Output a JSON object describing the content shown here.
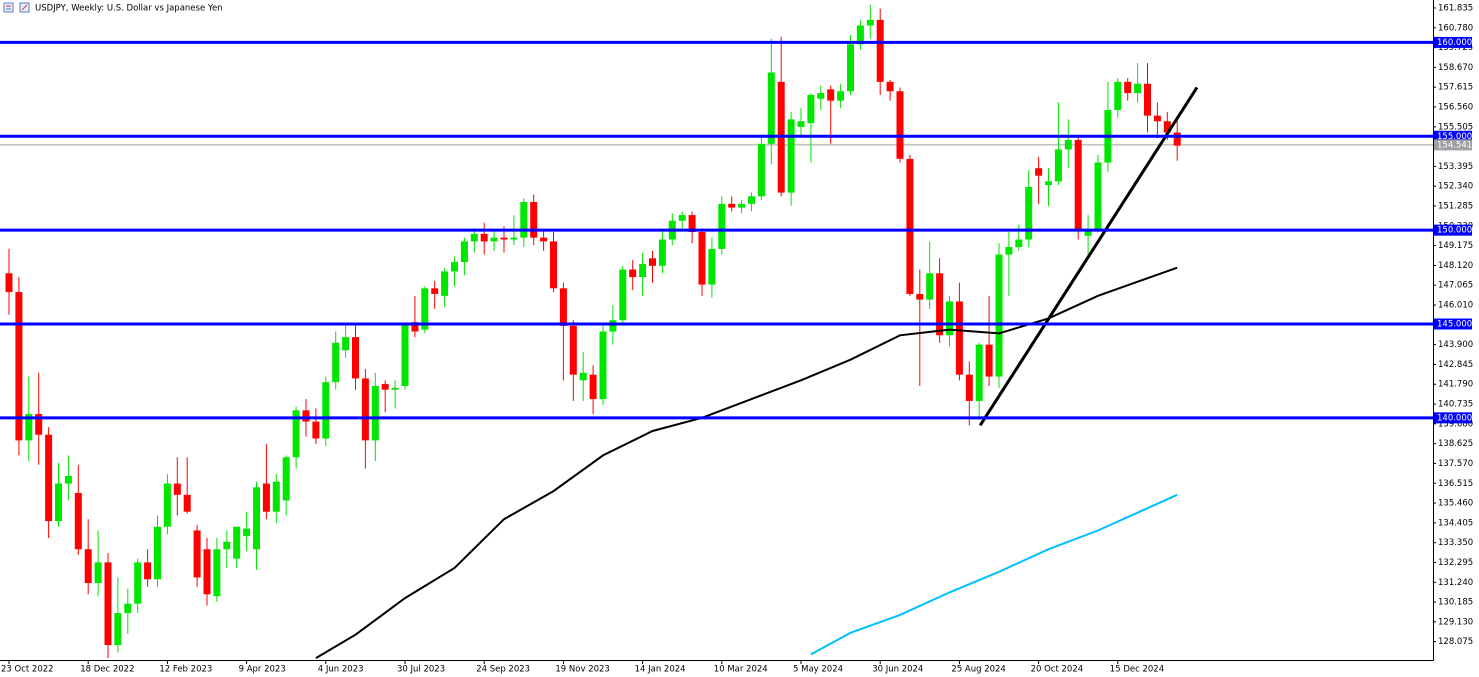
{
  "chart_data": {
    "type": "candlestick",
    "title": "USDJPY, Weekly:  U.S. Dollar vs Japanese Yen",
    "categories": [
      "23 Oct 2022",
      null,
      null,
      null,
      null,
      null,
      null,
      null,
      "18 Dec 2022",
      null,
      null,
      null,
      null,
      null,
      null,
      null,
      "12 Feb 2023",
      null,
      null,
      null,
      null,
      null,
      null,
      null,
      "9 Apr 2023",
      null,
      null,
      null,
      null,
      null,
      null,
      null,
      "4 Jun 2023",
      null,
      null,
      null,
      null,
      null,
      null,
      null,
      "30 Jul 2023",
      null,
      null,
      null,
      null,
      null,
      null,
      null,
      "24 Sep 2023",
      null,
      null,
      null,
      null,
      null,
      null,
      null,
      "19 Nov 2023",
      null,
      null,
      null,
      null,
      null,
      null,
      null,
      "14 Jan 2024",
      null,
      null,
      null,
      null,
      null,
      null,
      null,
      "10 Mar 2024",
      null,
      null,
      null,
      null,
      null,
      null,
      null,
      "5 May 2024",
      null,
      null,
      null,
      null,
      null,
      null,
      null,
      "30 Jun 2024",
      null,
      null,
      null,
      null,
      null,
      null,
      null,
      "25 Aug 2024",
      null,
      null,
      null,
      null,
      null,
      null,
      null,
      "20 Oct 2024",
      null,
      null,
      null,
      null,
      null,
      null,
      null,
      "15 Dec 2024",
      null,
      null,
      null,
      null,
      null,
      null
    ],
    "open": [
      147.7,
      146.7,
      138.8,
      140.2,
      139.1,
      134.5,
      136.5,
      136.0,
      133.0,
      131.2,
      132.3,
      127.9,
      129.6,
      130.1,
      132.3,
      131.4,
      134.2,
      136.5,
      135.9,
      134.0,
      133.0,
      130.5,
      133.0,
      132.5,
      133.7,
      133.0,
      136.5,
      135.0,
      135.6,
      137.9,
      140.4,
      139.8,
      138.9,
      141.9,
      143.6,
      144.3,
      142.1,
      138.8,
      141.8,
      141.5,
      141.7,
      145.1,
      144.7,
      146.9,
      146.5,
      147.8,
      148.3,
      149.4,
      149.8,
      149.4,
      149.6,
      149.5,
      149.6,
      151.5,
      149.6,
      149.4,
      146.9,
      144.9,
      142.0,
      142.3,
      141.0,
      144.6,
      145.2,
      147.9,
      147.5,
      148.5,
      148.1,
      149.5,
      150.5,
      150.8,
      149.9,
      147.1,
      149.0,
      151.4,
      151.2,
      151.4,
      151.8,
      154.6,
      157.9,
      152.0,
      155.5,
      155.7,
      157.0,
      157.5,
      156.9,
      157.4,
      159.9,
      160.9,
      161.2,
      157.9,
      157.4,
      153.8,
      146.6,
      146.3,
      147.7,
      144.4,
      146.2,
      142.3,
      140.9,
      143.9,
      142.2,
      148.7,
      149.1,
      149.5,
      153.3,
      152.4,
      152.6,
      154.3,
      154.8,
      149.7,
      150.0,
      153.6,
      156.4,
      157.9,
      157.3,
      157.8,
      156.1,
      155.8,
      155.2
    ],
    "high": [
      149.0,
      147.5,
      142.2,
      142.4,
      139.5,
      137.6,
      138.0,
      137.5,
      134.6,
      134.0,
      132.8,
      131.5,
      130.9,
      132.5,
      133.0,
      134.8,
      137.0,
      137.9,
      137.9,
      134.3,
      133.6,
      133.6,
      134.0,
      134.2,
      135.0,
      136.6,
      138.6,
      137.0,
      138.0,
      140.6,
      141.0,
      140.5,
      142.2,
      144.6,
      145.0,
      145.0,
      142.6,
      142.4,
      142.0,
      142.0,
      145.1,
      146.5,
      147.0,
      147.3,
      148.0,
      148.6,
      149.6,
      150.1,
      150.4,
      150.0,
      150.2,
      150.8,
      151.7,
      151.9,
      150.0,
      149.9,
      147.2,
      145.2,
      143.5,
      142.8,
      144.9,
      146.0,
      148.1,
      148.4,
      148.8,
      148.9,
      150.0,
      150.9,
      151.0,
      151.0,
      150.1,
      149.6,
      151.8,
      151.8,
      151.6,
      152.0,
      155.0,
      160.2,
      160.3,
      156.3,
      156.5,
      157.3,
      157.7,
      157.7,
      157.8,
      160.4,
      161.2,
      162.0,
      161.8,
      158.0,
      157.6,
      154.0,
      147.9,
      149.4,
      148.5,
      146.5,
      147.2,
      143.0,
      144.0,
      146.5,
      149.3,
      149.9,
      150.3,
      153.2,
      153.9,
      153.3,
      156.8,
      155.9,
      155.0,
      150.8,
      154.0,
      157.9,
      158.1,
      158.1,
      158.9,
      158.9,
      156.8,
      156.3,
      155.9
    ],
    "low": [
      145.5,
      138.0,
      137.7,
      137.5,
      133.6,
      134.2,
      135.6,
      132.7,
      130.6,
      130.5,
      127.2,
      127.5,
      128.5,
      129.6,
      131.0,
      131.0,
      133.8,
      134.8,
      134.9,
      131.0,
      130.0,
      130.2,
      132.0,
      132.0,
      132.9,
      131.9,
      134.6,
      134.4,
      134.8,
      137.3,
      139.0,
      138.6,
      138.5,
      141.5,
      143.2,
      141.5,
      137.3,
      137.7,
      140.3,
      140.5,
      141.5,
      144.3,
      144.5,
      145.8,
      145.9,
      147.0,
      147.6,
      148.8,
      148.7,
      148.9,
      148.8,
      149.2,
      149.1,
      149.2,
      148.9,
      146.7,
      142.0,
      140.9,
      140.9,
      140.2,
      140.7,
      143.9,
      145.0,
      146.8,
      146.5,
      147.2,
      147.7,
      149.2,
      150.0,
      149.3,
      146.5,
      146.4,
      148.7,
      151.0,
      150.9,
      151.0,
      151.6,
      153.5,
      151.8,
      151.3,
      155.0,
      153.6,
      156.4,
      154.6,
      156.5,
      157.2,
      159.6,
      160.2,
      157.2,
      156.9,
      153.6,
      146.5,
      141.7,
      145.8,
      144.0,
      143.8,
      142.0,
      139.6,
      139.9,
      141.7,
      141.6,
      146.5,
      148.9,
      149.1,
      151.4,
      151.3,
      152.4,
      153.3,
      149.5,
      148.6,
      149.9,
      153.1,
      156.0,
      156.9,
      156.8,
      155.2,
      154.9,
      154.8,
      153.7
    ],
    "close": [
      146.7,
      138.8,
      140.2,
      139.1,
      134.5,
      136.5,
      136.9,
      133.0,
      131.2,
      132.3,
      127.9,
      129.6,
      130.1,
      132.3,
      131.4,
      134.2,
      136.5,
      135.9,
      135.0,
      131.5,
      130.6,
      133.0,
      133.4,
      134.2,
      134.1,
      136.3,
      135.0,
      136.6,
      137.9,
      140.4,
      139.8,
      138.9,
      141.9,
      144.0,
      144.3,
      142.1,
      138.8,
      141.7,
      141.5,
      141.6,
      145.0,
      144.6,
      146.9,
      146.6,
      147.8,
      148.3,
      149.4,
      149.8,
      149.4,
      149.6,
      149.5,
      149.6,
      151.5,
      149.6,
      149.4,
      146.9,
      144.9,
      142.3,
      142.4,
      141.0,
      144.6,
      145.2,
      147.9,
      147.5,
      148.2,
      148.1,
      149.5,
      150.5,
      150.8,
      149.9,
      147.1,
      149.0,
      151.4,
      151.2,
      151.4,
      151.8,
      154.6,
      158.4,
      152.0,
      155.9,
      155.8,
      157.2,
      157.3,
      156.9,
      157.4,
      159.9,
      160.9,
      161.2,
      157.9,
      157.4,
      153.8,
      146.6,
      146.3,
      147.7,
      144.4,
      146.2,
      142.3,
      140.9,
      143.9,
      142.2,
      148.7,
      149.1,
      149.5,
      152.3,
      152.9,
      152.6,
      154.3,
      154.8,
      150.0,
      150.0,
      153.6,
      156.4,
      157.9,
      157.3,
      157.8,
      156.1,
      155.8,
      155.2,
      154.5
    ],
    "up_color": "#00e600",
    "down_color": "#ff0000",
    "series": [
      {
        "color": "#000000",
        "x": [
          31,
          35,
          40,
          45,
          50,
          55,
          60,
          65,
          70,
          75,
          80,
          85,
          90,
          95,
          100,
          105,
          110,
          118
        ],
        "values": [
          127.2,
          128.45,
          130.4,
          132.0,
          134.6,
          136.1,
          138.0,
          139.3,
          140.0,
          141.0,
          142.0,
          143.1,
          144.4,
          144.7,
          144.5,
          145.3,
          146.5,
          148.0
        ]
      },
      {
        "color": "#00bfff",
        "x": [
          81,
          85,
          90,
          95,
          100,
          105,
          110,
          118
        ],
        "values": [
          127.4,
          128.55,
          129.5,
          130.7,
          131.8,
          133.0,
          134.0,
          135.9
        ]
      }
    ],
    "trendline": {
      "color": "#000000",
      "x": [
        98.1,
        120
      ],
      "values": [
        139.6,
        157.6
      ]
    },
    "levels": [
      {
        "value": 160,
        "label": "160.000"
      },
      {
        "value": 155,
        "label": "155.000"
      },
      {
        "value": 150,
        "label": "150.000"
      },
      {
        "value": 145,
        "label": "145.000"
      },
      {
        "value": 140,
        "label": "140.000"
      }
    ],
    "level_color": "#0000ff",
    "current_price": {
      "value": 154.541,
      "label": "154.541"
    },
    "current_price_color": "#a0a0a4",
    "ylim": [
      127.1,
      162.26
    ],
    "yticks": [
      {
        "value": 161.835,
        "label": "161.835"
      },
      {
        "value": 160.78,
        "label": "160.780"
      },
      {
        "value": 159.725,
        "label": "159.725"
      },
      {
        "value": 158.67,
        "label": "158.670"
      },
      {
        "value": 157.615,
        "label": "157.615"
      },
      {
        "value": 156.56,
        "label": "156.560"
      },
      {
        "value": 155.505,
        "label": "155.505"
      },
      {
        "value": 153.395,
        "label": "153.395"
      },
      {
        "value": 152.34,
        "label": "152.340"
      },
      {
        "value": 151.285,
        "label": "151.285"
      },
      {
        "value": 150.23,
        "label": "150.230"
      },
      {
        "value": 149.175,
        "label": "149.175"
      },
      {
        "value": 148.12,
        "label": "148.120"
      },
      {
        "value": 147.065,
        "label": "147.065"
      },
      {
        "value": 146.01,
        "label": "146.010"
      },
      {
        "value": 143.9,
        "label": "143.900"
      },
      {
        "value": 142.845,
        "label": "142.845"
      },
      {
        "value": 141.79,
        "label": "141.790"
      },
      {
        "value": 140.735,
        "label": "140.735"
      },
      {
        "value": 139.68,
        "label": "139.680"
      },
      {
        "value": 138.625,
        "label": "138.625"
      },
      {
        "value": 137.57,
        "label": "137.570"
      },
      {
        "value": 136.515,
        "label": "136.515"
      },
      {
        "value": 135.46,
        "label": "135.460"
      },
      {
        "value": 134.405,
        "label": "134.405"
      },
      {
        "value": 133.35,
        "label": "133.350"
      },
      {
        "value": 132.295,
        "label": "132.295"
      },
      {
        "value": 131.24,
        "label": "131.240"
      },
      {
        "value": 130.185,
        "label": "130.185"
      },
      {
        "value": 129.13,
        "label": "129.130"
      },
      {
        "value": 128.075,
        "label": "128.075"
      }
    ]
  }
}
